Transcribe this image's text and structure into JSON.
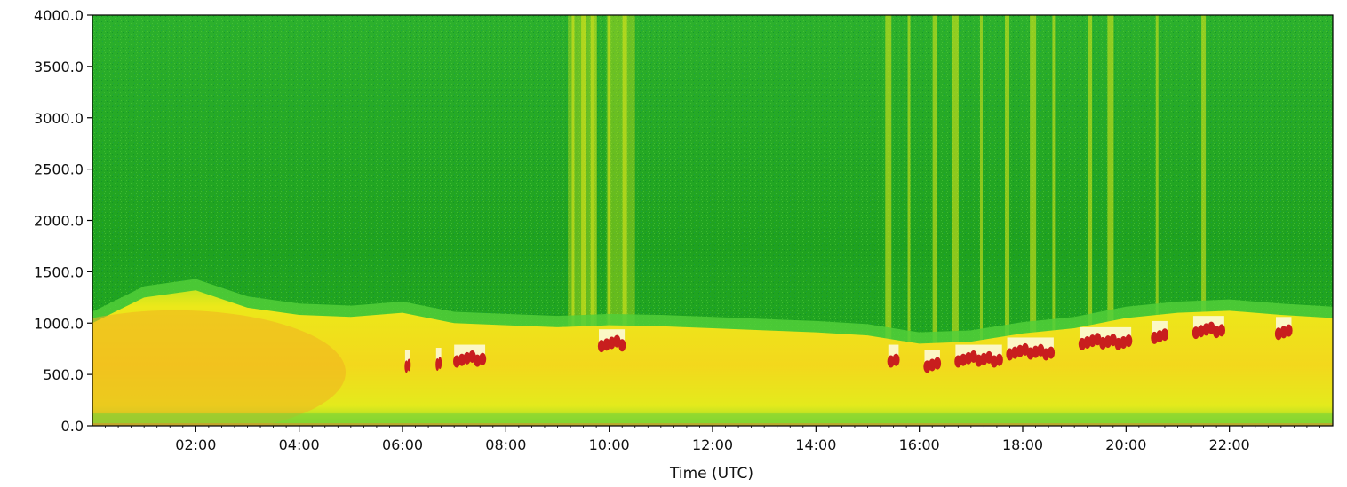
{
  "chart_data": {
    "type": "heatmap",
    "title": "",
    "xlabel": "Time (UTC)",
    "ylabel": "",
    "xlim_hours": [
      0,
      24
    ],
    "ylim": [
      0,
      4000
    ],
    "x_ticks": [
      "02:00",
      "04:00",
      "06:00",
      "08:00",
      "10:00",
      "12:00",
      "14:00",
      "16:00",
      "18:00",
      "20:00",
      "22:00"
    ],
    "x_tick_hours": [
      2,
      4,
      6,
      8,
      10,
      12,
      14,
      16,
      18,
      20,
      22
    ],
    "y_ticks": [
      "0.0",
      "500.0",
      "1000.0",
      "1500.0",
      "2000.0",
      "2500.0",
      "3000.0",
      "3500.0",
      "4000.0"
    ],
    "y_tick_values": [
      0,
      500,
      1000,
      1500,
      2000,
      2500,
      3000,
      3500,
      4000
    ],
    "colors": {
      "background_noise": "#1faa1f",
      "high_return": "#e8e81a",
      "boundary_layer": "#f2d21a",
      "boundary_peak": "#f0b020",
      "cloud_base": "#c81e1e",
      "saturated": "#ffffff"
    },
    "boundary_layer_top": {
      "hours": [
        0,
        1,
        2,
        3,
        4,
        5,
        6,
        7,
        8,
        9,
        10,
        11,
        12,
        13,
        14,
        15,
        16,
        17,
        18,
        19,
        20,
        21,
        22,
        23,
        24
      ],
      "heights": [
        1000,
        1250,
        1320,
        1150,
        1080,
        1060,
        1100,
        1000,
        980,
        960,
        980,
        970,
        950,
        930,
        910,
        880,
        800,
        820,
        900,
        950,
        1050,
        1100,
        1120,
        1080,
        1050
      ]
    },
    "cloud_base_events": [
      {
        "start": 6.05,
        "end": 6.15,
        "height": 600
      },
      {
        "start": 6.65,
        "end": 6.75,
        "height": 620
      },
      {
        "start": 7.0,
        "end": 7.6,
        "height": 650
      },
      {
        "start": 9.8,
        "end": 10.3,
        "height": 800
      },
      {
        "start": 15.4,
        "end": 15.6,
        "height": 650
      },
      {
        "start": 16.1,
        "end": 16.4,
        "height": 600
      },
      {
        "start": 16.7,
        "end": 17.6,
        "height": 650
      },
      {
        "start": 17.7,
        "end": 18.6,
        "height": 720
      },
      {
        "start": 19.1,
        "end": 20.1,
        "height": 820
      },
      {
        "start": 20.5,
        "end": 20.8,
        "height": 880
      },
      {
        "start": 21.3,
        "end": 21.9,
        "height": 930
      },
      {
        "start": 22.9,
        "end": 23.2,
        "height": 920
      }
    ],
    "precip_streaks_hours": [
      9.3,
      9.5,
      9.7,
      10.0,
      10.3,
      15.4,
      15.8,
      16.3,
      16.7,
      17.2,
      17.7,
      18.2,
      18.6,
      19.3,
      19.7,
      20.6,
      21.5
    ]
  }
}
